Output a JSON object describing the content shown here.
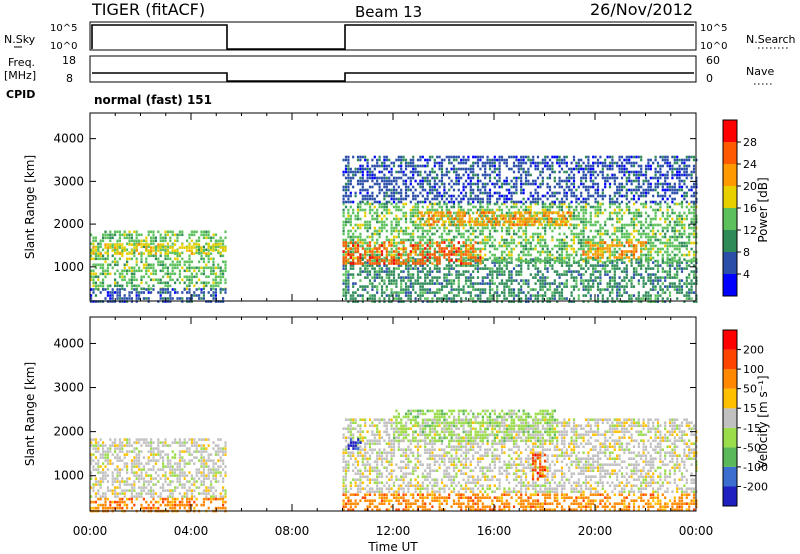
{
  "header": {
    "radar": "TIGER (fitACF)",
    "beam": "Beam 13",
    "date": "26/Nov/2012"
  },
  "status_panels": {
    "nsky_label": "N.Sky",
    "nsky_ticks": [
      "10^5",
      "10^0"
    ],
    "nsearch_label": "N.Search",
    "nsearch_ticks": [
      "10^5",
      "10^0"
    ],
    "freq_label": "Freq.",
    "freq_unit": "[MHz]",
    "freq_ticks": [
      "18",
      "8"
    ],
    "nave_label": "Nave",
    "nave_ticks": [
      "60",
      "0"
    ],
    "cpid_label": "CPID",
    "cpid_value": "normal (fast) 151"
  },
  "colors": {
    "power": [
      "#0000ff",
      "#2b4fa8",
      "#2e8b57",
      "#5cc05c",
      "#e8d000",
      "#ff9900",
      "#ff5a00",
      "#ff0000"
    ],
    "velocity": [
      "#2020c0",
      "#3c6ed0",
      "#5ab85a",
      "#9adc4a",
      "#c0c0c0",
      "#ffc000",
      "#ff8800",
      "#ff4400",
      "#ff0000"
    ]
  },
  "chart_data": [
    {
      "type": "heatmap",
      "name": "power",
      "ylabel": "Slant Range [km]",
      "y_ticks": [
        1000,
        2000,
        3000,
        4000
      ],
      "ylim": [
        200,
        4600
      ],
      "xlim": [
        0,
        24
      ],
      "colorbar_label": "Power [dB]",
      "colorbar_ticks": [
        "4",
        "8",
        "12",
        "16",
        "20",
        "24",
        "28"
      ],
      "regions": [
        {
          "t0": 0.0,
          "t1": 5.4,
          "r0": 500,
          "r1": 1850,
          "level": 3
        },
        {
          "t0": 0.0,
          "t1": 5.4,
          "r0": 1300,
          "r1": 1550,
          "level": 4
        },
        {
          "t0": 0.0,
          "t1": 5.4,
          "r0": 200,
          "r1": 500,
          "level": 1
        },
        {
          "t0": 10.0,
          "t1": 24.0,
          "r0": 200,
          "r1": 1200,
          "level": 2
        },
        {
          "t0": 10.0,
          "t1": 24.0,
          "r0": 1100,
          "r1": 2500,
          "level": 3
        },
        {
          "t0": 10.0,
          "t1": 15.5,
          "r0": 1100,
          "r1": 1600,
          "level": 6
        },
        {
          "t0": 13.0,
          "t1": 19.0,
          "r0": 2000,
          "r1": 2300,
          "level": 5
        },
        {
          "t0": 19.5,
          "t1": 22.0,
          "r0": 1200,
          "r1": 1600,
          "level": 5
        },
        {
          "t0": 10.0,
          "t1": 24.0,
          "r0": 2500,
          "r1": 3600,
          "level": 1
        }
      ]
    },
    {
      "type": "heatmap",
      "name": "velocity",
      "ylabel": "Slant Range [km]",
      "y_ticks": [
        1000,
        2000,
        3000,
        4000
      ],
      "ylim": [
        200,
        4600
      ],
      "xlim": [
        0,
        24
      ],
      "xlabel": "Time UT",
      "x_ticks": [
        "00:00",
        "04:00",
        "08:00",
        "12:00",
        "16:00",
        "20:00",
        "00:00"
      ],
      "colorbar_label": "Velocity [m s⁻¹]",
      "colorbar_ticks": [
        "200",
        "100",
        "50",
        "15",
        "-15",
        "-50",
        "-100",
        "-200"
      ],
      "regions": [
        {
          "t0": 0.0,
          "t1": 5.4,
          "r0": 500,
          "r1": 1850,
          "level": 4
        },
        {
          "t0": 0.0,
          "t1": 5.4,
          "r0": 200,
          "r1": 500,
          "level": 6
        },
        {
          "t0": 10.0,
          "t1": 24.0,
          "r0": 600,
          "r1": 2300,
          "level": 4
        },
        {
          "t0": 12.0,
          "t1": 18.5,
          "r0": 1800,
          "r1": 2500,
          "level": 3
        },
        {
          "t0": 10.2,
          "t1": 10.7,
          "r0": 1600,
          "r1": 1850,
          "level": 0
        },
        {
          "t0": 17.5,
          "t1": 18.0,
          "r0": 900,
          "r1": 1500,
          "level": 7
        },
        {
          "t0": 10.0,
          "t1": 24.0,
          "r0": 200,
          "r1": 600,
          "level": 6
        }
      ]
    }
  ]
}
